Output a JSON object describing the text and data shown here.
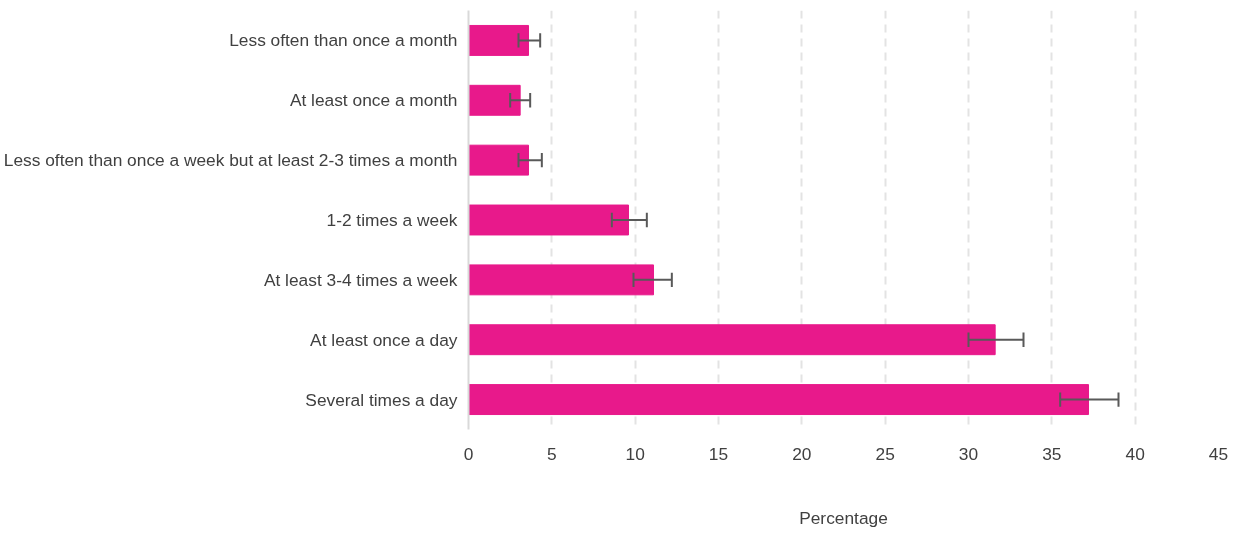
{
  "chart_data": {
    "type": "bar",
    "orientation": "horizontal",
    "xlabel": "Percentage",
    "categories": [
      "Less often than once a month",
      "At least once a month",
      "Less often than once a week but at least 2-3 times a month",
      "1-2 times a week",
      "At least 3-4 times a week",
      "At least once a day",
      "Several times a day"
    ],
    "series": [
      {
        "color": "#e8198b",
        "values": [
          3.6,
          3.1,
          3.6,
          9.6,
          11.1,
          31.6,
          37.2
        ],
        "errors": [
          [
            3.0,
            4.3
          ],
          [
            2.5,
            3.7
          ],
          [
            3.0,
            4.4
          ],
          [
            8.6,
            10.7
          ],
          [
            9.9,
            12.2
          ],
          [
            30.0,
            33.3
          ],
          [
            35.5,
            39.0
          ]
        ]
      }
    ],
    "xlim": [
      0,
      45
    ],
    "xticks": [
      0,
      5,
      10,
      15,
      20,
      25,
      30,
      35,
      40,
      45
    ],
    "grid": "x"
  }
}
